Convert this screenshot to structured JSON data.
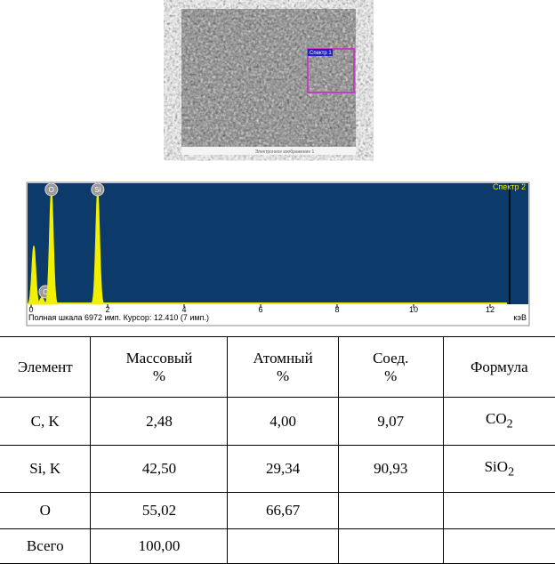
{
  "micrograph": {
    "region_label": "Спектр 1",
    "caption": "Электронное изображение 1"
  },
  "spectrum": {
    "title": "Спектр 2",
    "xlim": [
      0,
      13
    ],
    "xticks": [
      0,
      2,
      4,
      6,
      8,
      10,
      12
    ],
    "ylim": [
      0,
      6972
    ],
    "footer": "Полная шкала 6972 имп. Курсор: 12.410 (7 имп.)",
    "unit": "кэВ",
    "peaks": [
      {
        "energy": 0.07,
        "counts": 3400
      },
      {
        "label": "C",
        "energy": 0.28,
        "counts": 400
      },
      {
        "label": "O",
        "energy": 0.53,
        "counts": 6600
      },
      {
        "label": "Si",
        "energy": 1.74,
        "counts": 6600
      }
    ]
  },
  "table": {
    "header": [
      [
        "Элемент"
      ],
      [
        "Массовый",
        "%"
      ],
      [
        "Атомный",
        "%"
      ],
      [
        "Соед.",
        "%"
      ],
      [
        "Формула"
      ]
    ],
    "rows": [
      [
        "C, K",
        "2,48",
        "4,00",
        "9,07",
        [
          "CO",
          "2"
        ]
      ],
      [
        "Si, K",
        "42,50",
        "29,34",
        "90,93",
        [
          "SiO",
          "2"
        ]
      ],
      [
        "O",
        "55,02",
        "66,67",
        null,
        null
      ],
      [
        "Всего",
        "100,00",
        null,
        null,
        null
      ]
    ]
  }
}
